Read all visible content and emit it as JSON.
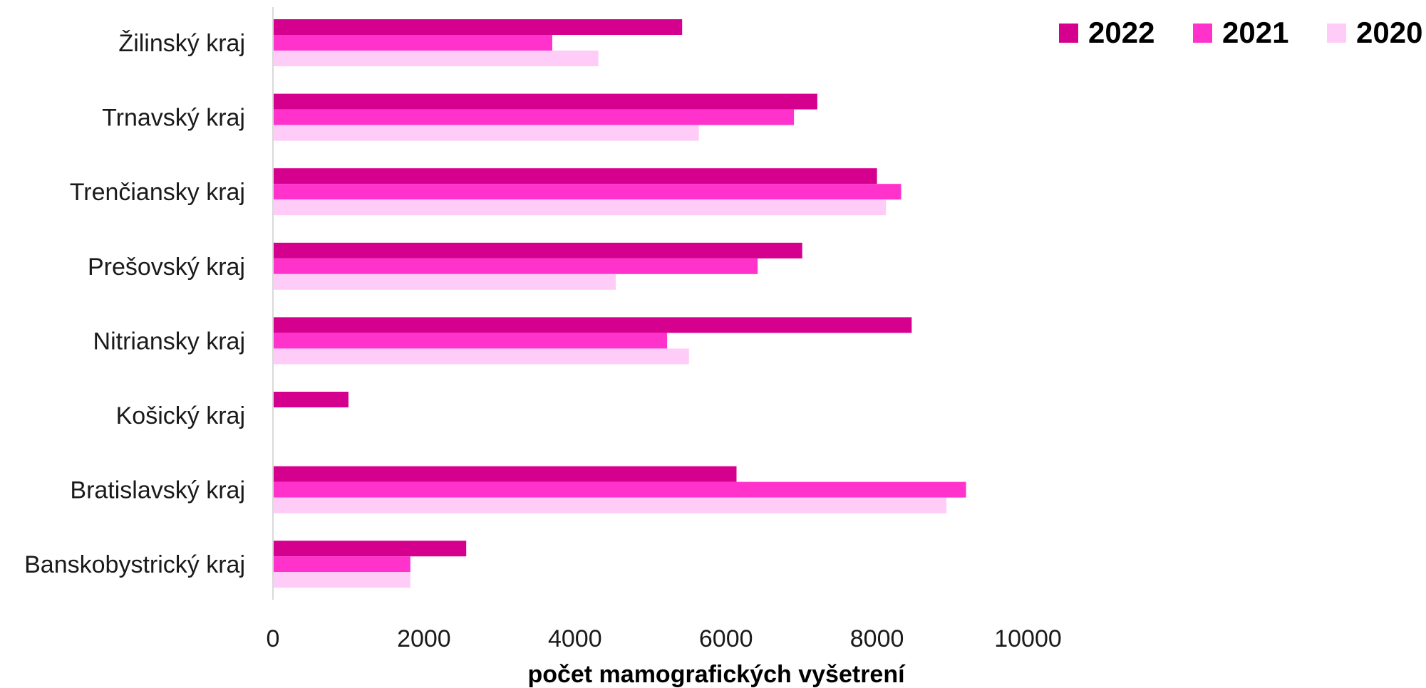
{
  "chart_data": {
    "type": "bar",
    "orientation": "horizontal",
    "categories": [
      "Žilinský kraj",
      "Trnavský kraj",
      "Trenčiansky kraj",
      "Prešovský kraj",
      "Nitriansky kraj",
      "Košický kraj",
      "Bratislavský kraj",
      "Banskobystrický kraj"
    ],
    "series": [
      {
        "name": "2022",
        "color": "#d6008f",
        "values": [
          5420,
          7210,
          8000,
          7010,
          8460,
          1000,
          6140,
          2560
        ]
      },
      {
        "name": "2021",
        "color": "#ff33cc",
        "values": [
          3700,
          6900,
          8320,
          6420,
          5220,
          null,
          9180,
          1820
        ]
      },
      {
        "name": "2020",
        "color": "#ffccf7",
        "values": [
          4310,
          5640,
          8120,
          4540,
          5510,
          null,
          8920,
          1820
        ]
      }
    ],
    "xlabel": "počet mamografických vyšetrení",
    "xlim": [
      0,
      10000
    ],
    "xticks": [
      "0",
      "2000",
      "4000",
      "6000",
      "8000",
      "10000"
    ],
    "grid": false,
    "legend_position": "top-right"
  }
}
